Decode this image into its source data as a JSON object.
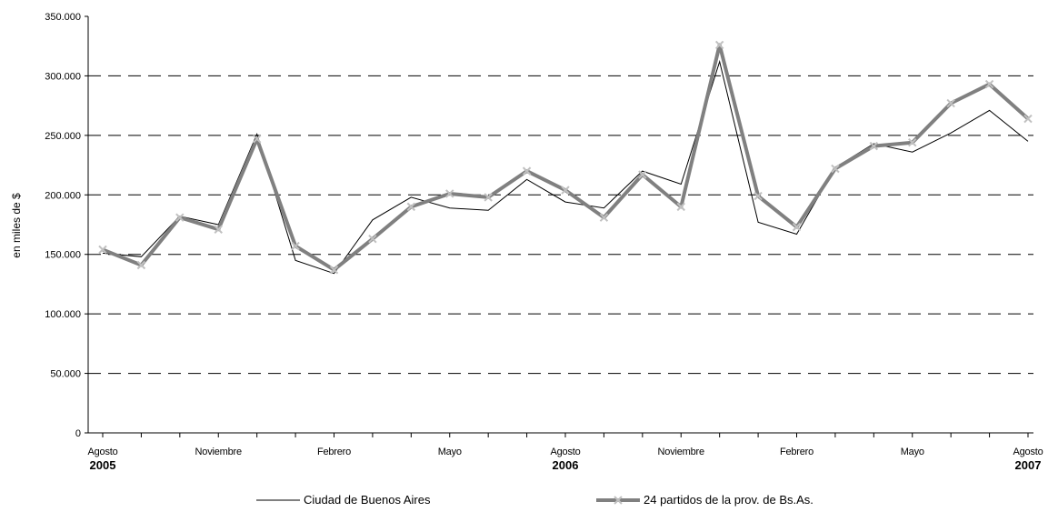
{
  "chart_data": {
    "type": "line",
    "ylabel": "en miles de $",
    "ylim": [
      0,
      350000
    ],
    "yticks": [
      0,
      50000,
      100000,
      150000,
      200000,
      250000,
      300000,
      350000
    ],
    "ytick_labels": [
      "0",
      "50.000",
      "100.000",
      "150.000",
      "200.000",
      "250.000",
      "300.000",
      "350.000"
    ],
    "grid": "horizontal dashed",
    "legend_position": "bottom",
    "x_tick_labels": [
      {
        "index": 0,
        "month": "Agosto",
        "year": "2005"
      },
      {
        "index": 3,
        "month": "Noviembre",
        "year": ""
      },
      {
        "index": 6,
        "month": "Febrero",
        "year": ""
      },
      {
        "index": 9,
        "month": "Mayo",
        "year": ""
      },
      {
        "index": 12,
        "month": "Agosto",
        "year": "2006"
      },
      {
        "index": 15,
        "month": "Noviembre",
        "year": ""
      },
      {
        "index": 18,
        "month": "Febrero",
        "year": ""
      },
      {
        "index": 21,
        "month": "Mayo",
        "year": ""
      },
      {
        "index": 24,
        "month": "Agosto",
        "year": "2007"
      }
    ],
    "series": [
      {
        "name": "Ciudad de Buenos Aires",
        "color": "#000000",
        "values": [
          151000,
          148000,
          182000,
          175000,
          251000,
          145000,
          134000,
          179000,
          198000,
          189000,
          187000,
          213000,
          194000,
          189000,
          220000,
          209000,
          312000,
          177000,
          167000,
          223000,
          243000,
          236000,
          252000,
          271000,
          245000
        ]
      },
      {
        "name": "24 partidos de la prov. de Bs.As.",
        "color": "#808080",
        "marker_color": "#c0c0c0",
        "values": [
          154000,
          141000,
          181000,
          171000,
          247000,
          157000,
          137000,
          163000,
          190000,
          201000,
          198000,
          220000,
          204000,
          181000,
          217000,
          190000,
          326000,
          199000,
          173000,
          222000,
          241000,
          244000,
          277000,
          293000,
          264000
        ]
      }
    ]
  }
}
